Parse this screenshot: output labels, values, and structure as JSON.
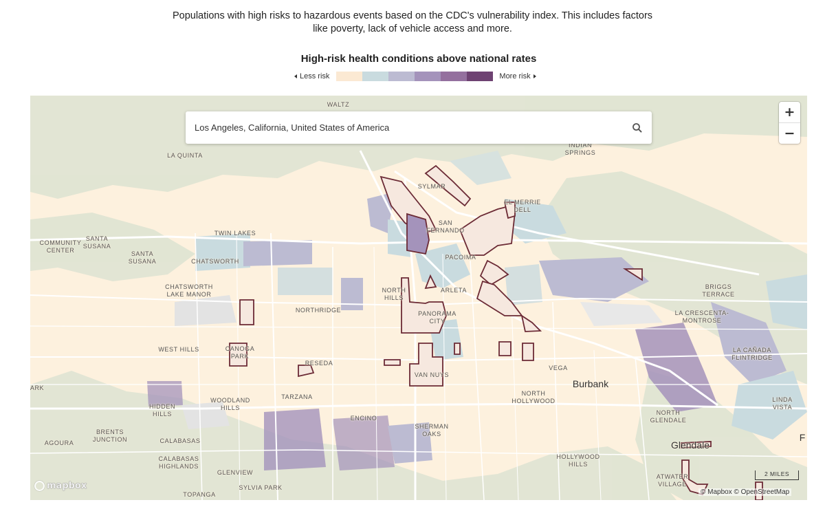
{
  "intro": "Populations with high risks to hazardous events based on the CDC's vulnerability index. This includes factors like poverty, lack of vehicle access and more.",
  "legend": {
    "title": "High-risk health conditions above national rates",
    "less_label": "Less risk",
    "more_label": "More risk",
    "colors": [
      "#fbe9d3",
      "#c9dbdf",
      "#bcbbd2",
      "#a493bb",
      "#94709e",
      "#6e4272"
    ]
  },
  "search": {
    "value": "Los Angeles, California, United States of America"
  },
  "zoom": {
    "in_label": "+",
    "out_label": "−"
  },
  "attribution": {
    "logo_text": "mapbox",
    "credits": "© Mapbox © OpenStreetMap",
    "scale_label": "2 MILES"
  },
  "places": [
    {
      "text": "WALTZ"
    },
    {
      "text": "LA QUINTA"
    },
    {
      "text": "INDIAN\nSPRINGS"
    },
    {
      "text": "SYLMAR"
    },
    {
      "text": "EL MERRIE\nDELL"
    },
    {
      "text": "SAN\nFERNANDO"
    },
    {
      "text": "PACOIMA"
    },
    {
      "text": "TWIN LAKES"
    },
    {
      "text": "COMMUNITY\nCENTER"
    },
    {
      "text": "SANTA\nSUSANA"
    },
    {
      "text": "SANTA\nSUSANA"
    },
    {
      "text": "CHATSWORTH"
    },
    {
      "text": "CHATSWORTH\nLAKE MANOR"
    },
    {
      "text": "NORTHRIDGE"
    },
    {
      "text": "NORTH\nHILLS"
    },
    {
      "text": "ARLETA"
    },
    {
      "text": "PANORAMA\nCITY"
    },
    {
      "text": "BRIGGS\nTERRACE"
    },
    {
      "text": "LA CRESCENTA-\nMONTROSE"
    },
    {
      "text": "WEST HILLS"
    },
    {
      "text": "CANOGA\nPARK"
    },
    {
      "text": "RESEDA"
    },
    {
      "text": "VAN NUYS"
    },
    {
      "text": "VEGA"
    },
    {
      "text": "Burbank",
      "city": true
    },
    {
      "text": "LA CAÑADA\nFLINTRIDGE"
    },
    {
      "text": "ARK"
    },
    {
      "text": "TARZANA"
    },
    {
      "text": "WOODLAND\nHILLS"
    },
    {
      "text": "HIDDEN\nHILLS"
    },
    {
      "text": "NORTH\nHOLLYWOOD"
    },
    {
      "text": "LINDA VISTA"
    },
    {
      "text": "ENCINO"
    },
    {
      "text": "NORTH\nGLENDALE"
    },
    {
      "text": "BRENTS\nJUNCTION"
    },
    {
      "text": "AGOURA"
    },
    {
      "text": "CALABASAS"
    },
    {
      "text": "SHERMAN\nOAKS"
    },
    {
      "text": "Glendale",
      "city": true
    },
    {
      "text": "F",
      "city": true
    },
    {
      "text": "CALABASAS\nHIGHLANDS"
    },
    {
      "text": "HOLLYWOOD\nHILLS"
    },
    {
      "text": "GLENVIEW"
    },
    {
      "text": "ATWATER\nVILLAGE"
    },
    {
      "text": "SYLVIA PARK"
    },
    {
      "text": "TOPANGA"
    }
  ]
}
